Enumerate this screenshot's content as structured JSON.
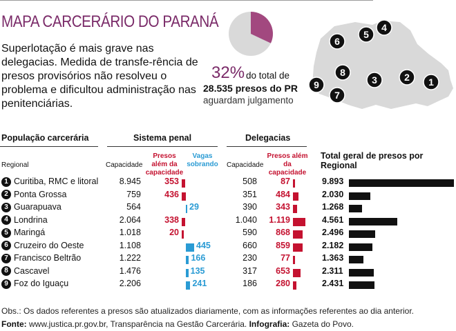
{
  "title": "MAPA CARCERÁRIO DO PARANÁ",
  "intro": "Superlotação é mais grave nas delegacias. Medida de transfe-rência de presos provisórios não resolveu o problema e dificultou administração nas penitenciárias.",
  "pie": {
    "percent_label": "32%",
    "rest_text": "do total de",
    "total_text": "28.535 presos do PR",
    "sub_text": "aguardam julgamento",
    "share": 0.32,
    "colors": {
      "share": "#a2487f",
      "rest": "#d9d9d9"
    }
  },
  "map": {
    "labels": [
      "1",
      "2",
      "3",
      "4",
      "5",
      "6",
      "7",
      "8",
      "9"
    ],
    "fill": "#d9d9d9"
  },
  "headers": {
    "populacao": "População carcerária",
    "regional": "Regional",
    "sistema": "Sistema penal",
    "delegacias": "Delegacias",
    "capacidade": "Capacidade",
    "presos_alem": "Presos além da capacidade",
    "vagas": "Vagas sobrando",
    "total_geral": "Total geral de presos por Regional"
  },
  "colors": {
    "red": "#c41230",
    "blue": "#2a9bd4",
    "black": "#111111",
    "purple": "#7a2a68"
  },
  "chart_data": {
    "type": "table",
    "title": "MAPA CARCERÁRIO DO PARANÁ",
    "rows": [
      {
        "n": "1",
        "regional": "Curitiba, RMC e litoral",
        "sp_cap": "8.945",
        "sp_alem": "353",
        "sp_alem_v": 353,
        "sp_vagas": "",
        "sp_vagas_v": 0,
        "del_cap": "508",
        "del_alem": "87",
        "del_alem_v": 87,
        "total": "9.893",
        "total_v": 9893
      },
      {
        "n": "2",
        "regional": "Ponta Grossa",
        "sp_cap": "759",
        "sp_alem": "436",
        "sp_alem_v": 436,
        "sp_vagas": "",
        "sp_vagas_v": 0,
        "del_cap": "351",
        "del_alem": "484",
        "del_alem_v": 484,
        "total": "2.030",
        "total_v": 2030
      },
      {
        "n": "3",
        "regional": "Guarapuava",
        "sp_cap": "564",
        "sp_alem": "",
        "sp_alem_v": 0,
        "sp_vagas": "29",
        "sp_vagas_v": 29,
        "del_cap": "390",
        "del_alem": "343",
        "del_alem_v": 343,
        "total": "1.268",
        "total_v": 1268
      },
      {
        "n": "4",
        "regional": "Londrina",
        "sp_cap": "2.064",
        "sp_alem": "338",
        "sp_alem_v": 338,
        "sp_vagas": "",
        "sp_vagas_v": 0,
        "del_cap": "1.040",
        "del_alem": "1.119",
        "del_alem_v": 1119,
        "total": "4.561",
        "total_v": 4561
      },
      {
        "n": "5",
        "regional": "Maringá",
        "sp_cap": "1.018",
        "sp_alem": "20",
        "sp_alem_v": 20,
        "sp_vagas": "",
        "sp_vagas_v": 0,
        "del_cap": "590",
        "del_alem": "868",
        "del_alem_v": 868,
        "total": "2.496",
        "total_v": 2496
      },
      {
        "n": "6",
        "regional": "Cruzeiro do Oeste",
        "sp_cap": "1.108",
        "sp_alem": "",
        "sp_alem_v": 0,
        "sp_vagas": "445",
        "sp_vagas_v": 445,
        "del_cap": "660",
        "del_alem": "859",
        "del_alem_v": 859,
        "total": "2.182",
        "total_v": 2182
      },
      {
        "n": "7",
        "regional": "Francisco Beltrão",
        "sp_cap": "1.222",
        "sp_alem": "",
        "sp_alem_v": 0,
        "sp_vagas": "166",
        "sp_vagas_v": 166,
        "del_cap": "230",
        "del_alem": "77",
        "del_alem_v": 77,
        "total": "1.363",
        "total_v": 1363
      },
      {
        "n": "8",
        "regional": "Cascavel",
        "sp_cap": "1.476",
        "sp_alem": "",
        "sp_alem_v": 0,
        "sp_vagas": "135",
        "sp_vagas_v": 135,
        "del_cap": "317",
        "del_alem": "653",
        "del_alem_v": 653,
        "total": "2.311",
        "total_v": 2311
      },
      {
        "n": "9",
        "regional": "Foz do Iguaçu",
        "sp_cap": "2.206",
        "sp_alem": "",
        "sp_alem_v": 0,
        "sp_vagas": "241",
        "sp_vagas_v": 241,
        "del_cap": "186",
        "del_alem": "280",
        "del_alem_v": 280,
        "total": "2.431",
        "total_v": 2431
      }
    ]
  },
  "footer": {
    "obs": "Obs.: Os dados referentes a presos são atualizados diariamente, com as informações referentes ao dia anterior.",
    "fonte_label": "Fonte:",
    "fonte_text": " www.justica.pr.gov.br, Transparência na Gestão Carcerária. ",
    "info_label": "Infografia:",
    "info_text": " Gazeta do Povo."
  }
}
